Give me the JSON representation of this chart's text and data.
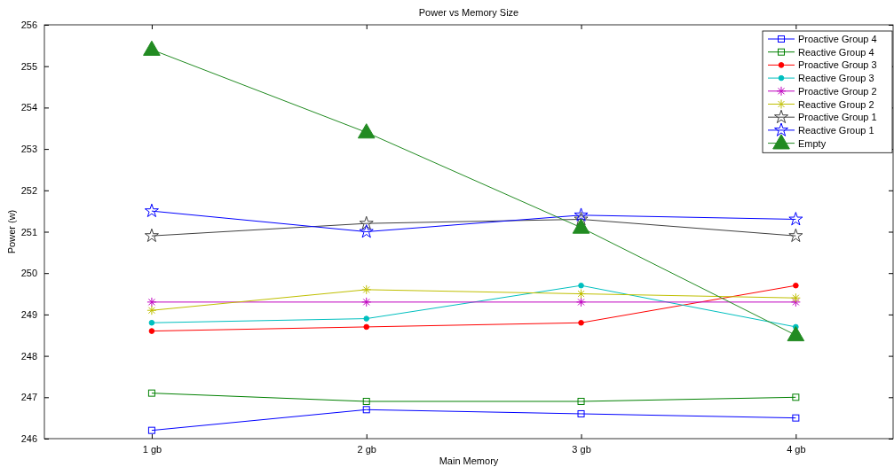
{
  "chart_data": {
    "type": "line",
    "title": "Power vs Memory Size",
    "xlabel": "Main Memory",
    "ylabel": "Power (w)",
    "categories": [
      "1 gb",
      "2 gb",
      "3 gb",
      "4 gb"
    ],
    "ylim": [
      246,
      256
    ],
    "yticks": [
      246,
      247,
      248,
      249,
      250,
      251,
      252,
      253,
      254,
      255,
      256
    ],
    "grid": false,
    "legend": "top right",
    "series": [
      {
        "name": "Proactive Group 4",
        "color": "#0000ff",
        "marker": "square",
        "values": [
          246.2,
          246.7,
          246.6,
          246.5
        ]
      },
      {
        "name": "Reactive Group 4",
        "color": "#008000",
        "marker": "square",
        "values": [
          247.1,
          246.9,
          246.9,
          247.0
        ]
      },
      {
        "name": "Proactive Group 3",
        "color": "#ff0000",
        "marker": "circle",
        "values": [
          248.6,
          248.7,
          248.8,
          249.7
        ]
      },
      {
        "name": "Reactive Group 3",
        "color": "#00bfbf",
        "marker": "circle",
        "values": [
          248.8,
          248.9,
          249.7,
          248.7
        ]
      },
      {
        "name": "Proactive Group 2",
        "color": "#bf00bf",
        "marker": "cross",
        "values": [
          249.3,
          249.3,
          249.3,
          249.3
        ]
      },
      {
        "name": "Reactive Group 2",
        "color": "#bfbf00",
        "marker": "cross",
        "values": [
          249.1,
          249.6,
          249.5,
          249.4
        ]
      },
      {
        "name": "Proactive Group 1",
        "color": "#404040",
        "marker": "star",
        "values": [
          250.9,
          251.2,
          251.3,
          250.9
        ]
      },
      {
        "name": "Reactive Group 1",
        "color": "#0000ff",
        "marker": "star",
        "values": [
          251.5,
          251.0,
          251.4,
          251.3
        ]
      },
      {
        "name": "Empty",
        "color": "#228b22",
        "marker": "triangle",
        "values": [
          255.4,
          253.4,
          251.1,
          248.5
        ]
      }
    ]
  }
}
